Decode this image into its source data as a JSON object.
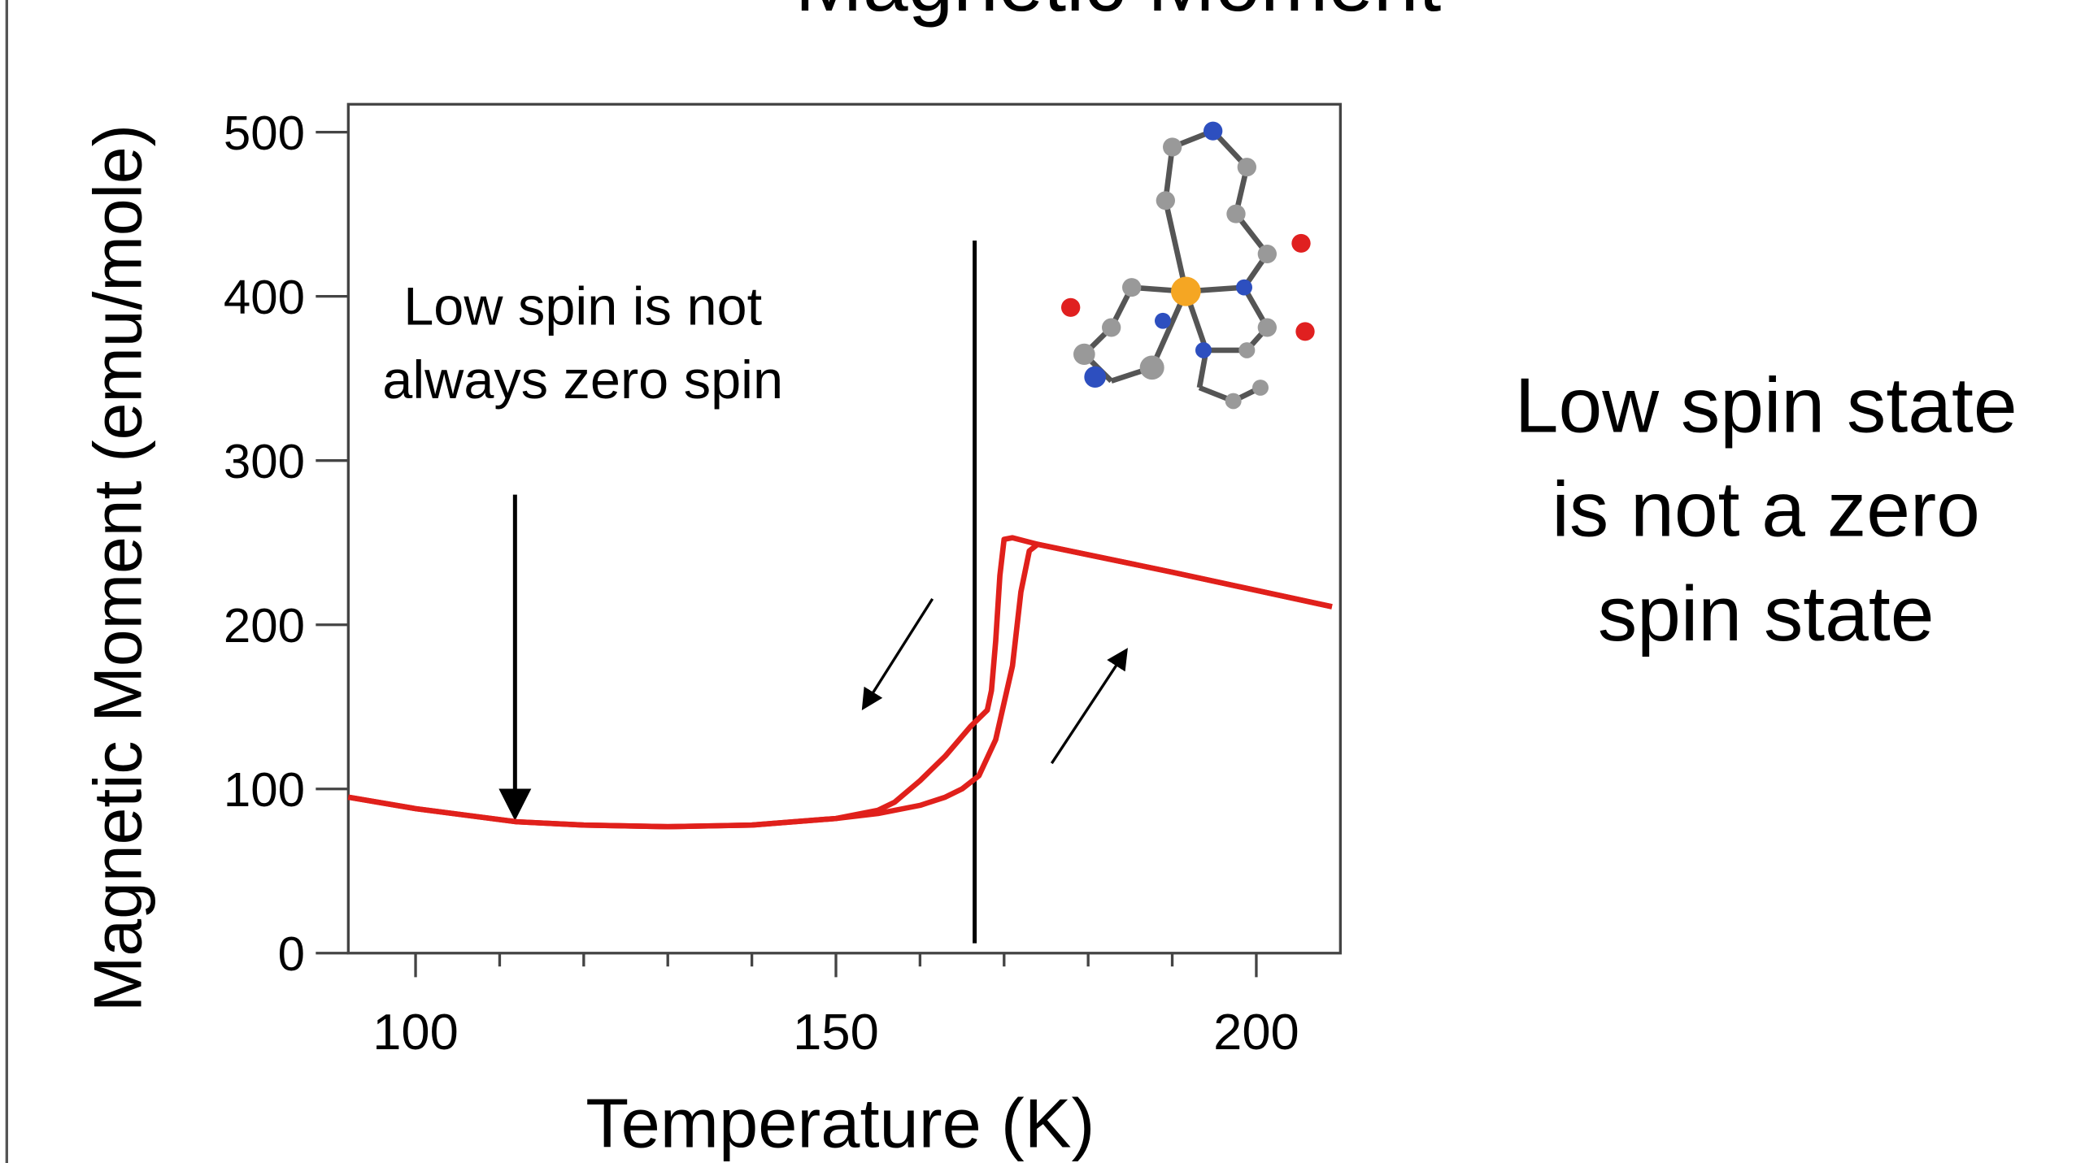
{
  "chart_data": {
    "type": "line",
    "title": "Magnetic Moment",
    "xlabel": "Temperature (K)",
    "ylabel": "Magnetic Moment (emu/mole)",
    "xlim": [
      92,
      210
    ],
    "ylim": [
      0,
      517
    ],
    "xticks": [
      100,
      150,
      200
    ],
    "xticks_minor": [
      110,
      120,
      130,
      140,
      160,
      170,
      180,
      190
    ],
    "yticks": [
      0,
      100,
      200,
      300,
      400,
      500
    ],
    "series": [
      {
        "color": "#e0201b",
        "x": [
          92,
          100,
          112,
          120,
          130,
          140,
          150,
          155,
          160,
          163,
          165,
          167,
          169,
          171,
          172,
          173,
          174,
          190,
          209
        ],
        "values": [
          95,
          88,
          80,
          78,
          77,
          78,
          82,
          85,
          90,
          95,
          100,
          108,
          130,
          175,
          220,
          245,
          249,
          232,
          211
        ]
      },
      {
        "color": "#e0201b",
        "x": [
          209,
          190,
          174,
          171,
          170,
          169.5,
          169,
          168.5,
          168,
          166,
          163,
          160,
          157,
          155,
          150,
          140,
          130,
          120,
          112,
          100,
          92
        ],
        "values": [
          211,
          232,
          249,
          253,
          252,
          230,
          190,
          160,
          148,
          138,
          120,
          105,
          92,
          87,
          82,
          78,
          77,
          78,
          80,
          88,
          95
        ]
      }
    ],
    "marker_line": {
      "x": 166.5,
      "y": [
        6,
        434
      ]
    },
    "annotation": [
      "Low spin is not",
      "always zero spin"
    ],
    "note": [
      "Low spin state",
      "is not a zero",
      "spin state"
    ]
  }
}
